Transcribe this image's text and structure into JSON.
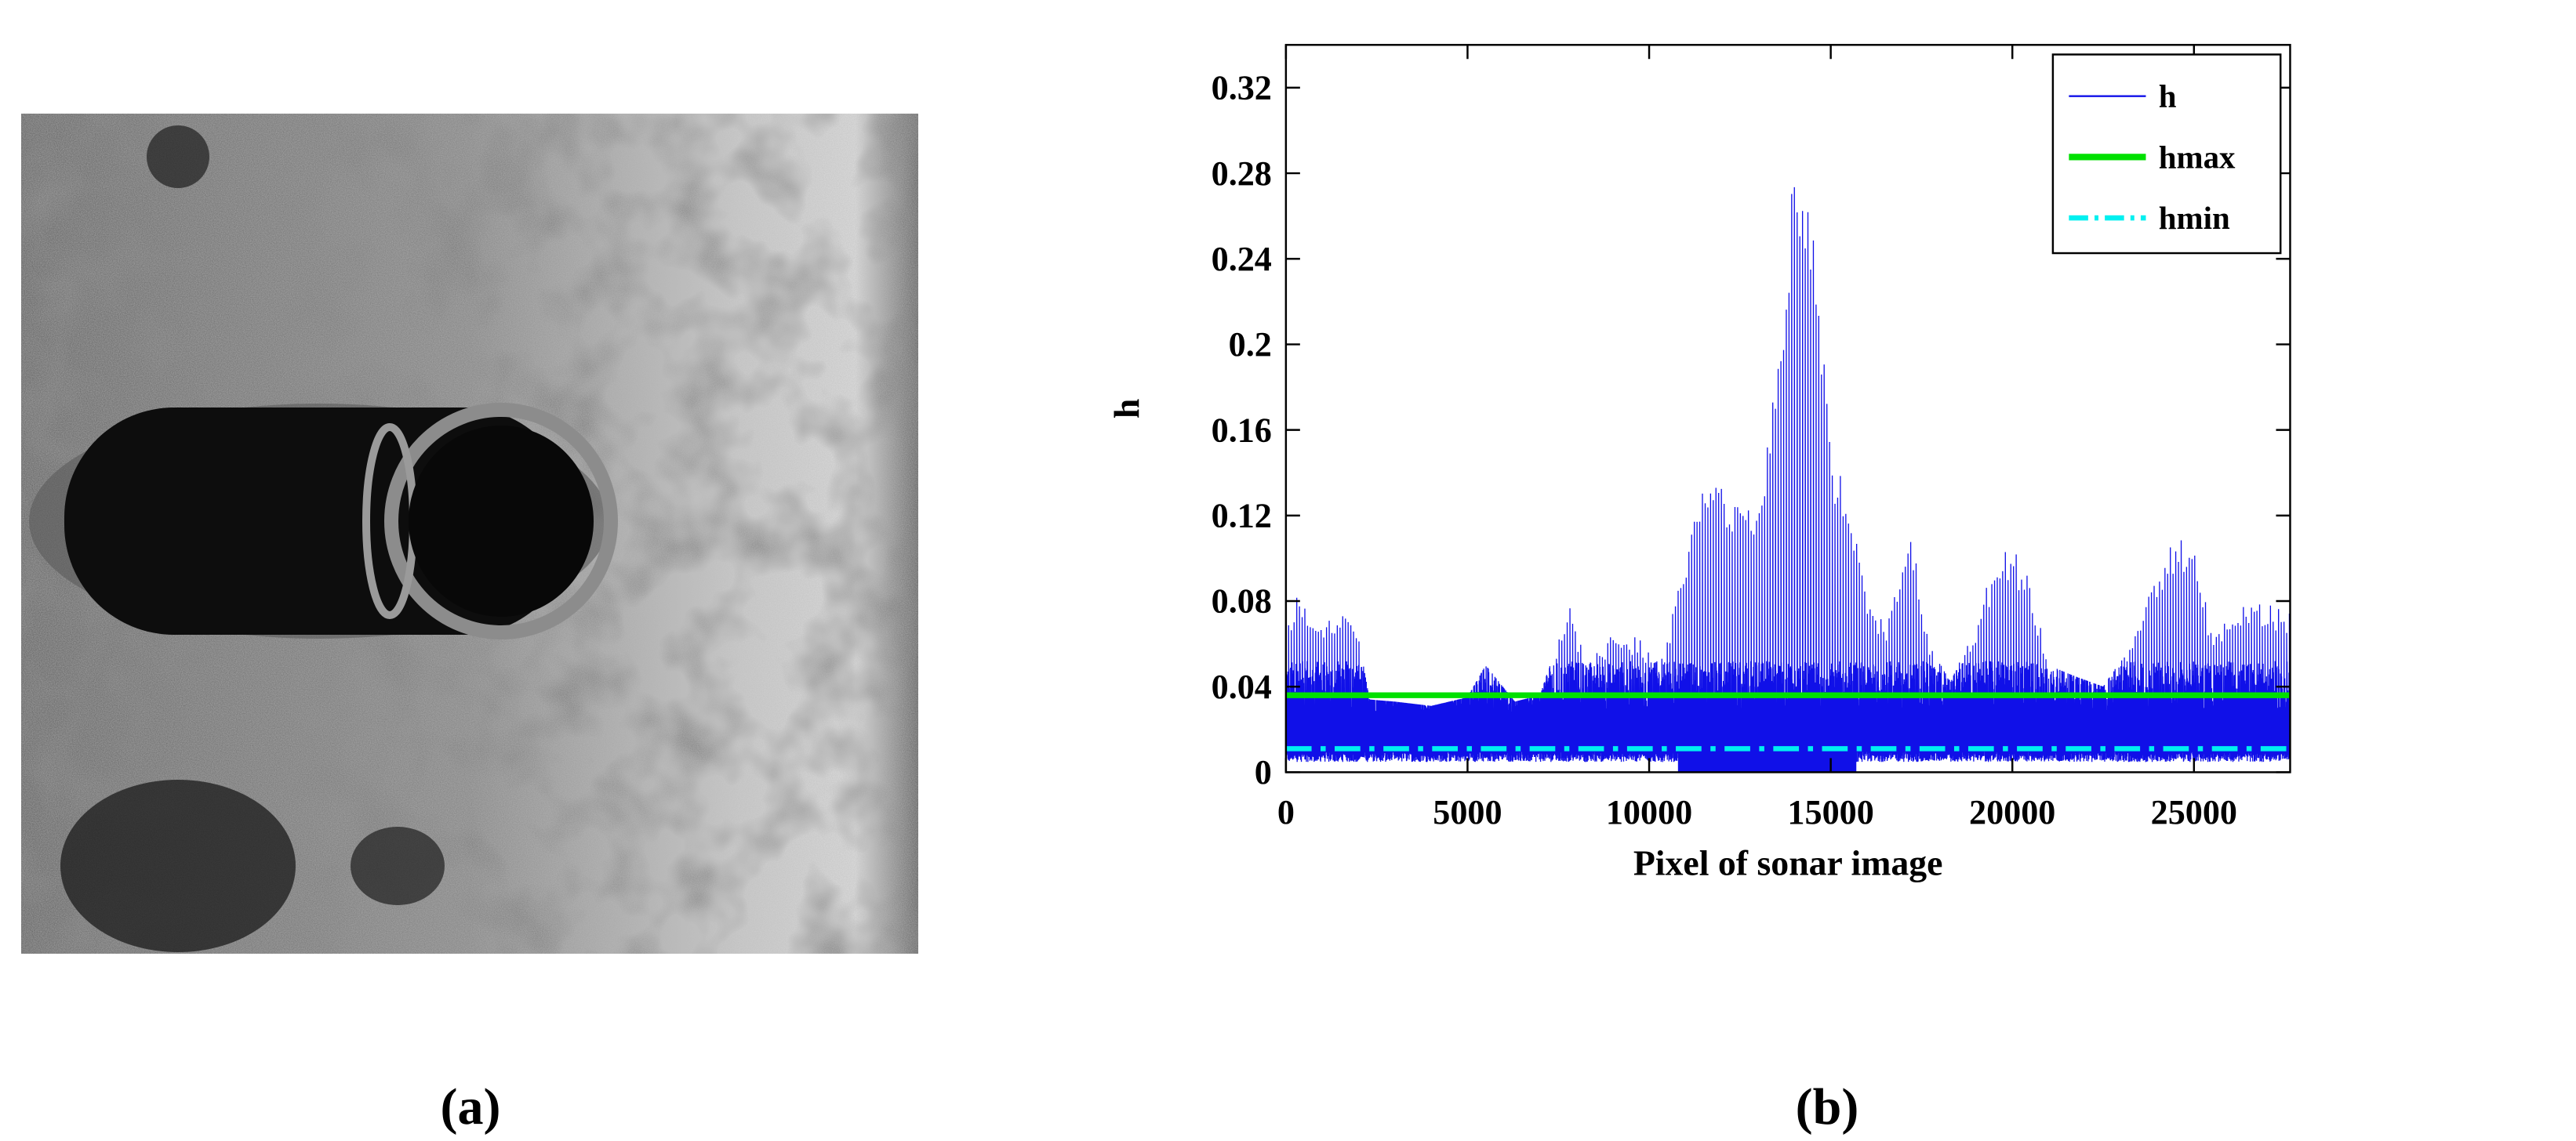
{
  "panel_labels": {
    "a": "(a)",
    "b": "(b)"
  },
  "colors": {
    "h": "#1010e8",
    "hmax": "#00e000",
    "hmin": "#00f0f0",
    "axis": "#000000"
  },
  "chart_data": {
    "type": "line",
    "title": "",
    "xlabel": "Pixel of sonar image",
    "ylabel": "h",
    "xlim": [
      0,
      27648
    ],
    "ylim": [
      0,
      0.34
    ],
    "xticks": [
      0,
      5000,
      10000,
      15000,
      20000,
      25000
    ],
    "xtick_labels": [
      "0",
      "5000",
      "10000",
      "15000",
      "20000",
      "25000"
    ],
    "yticks": [
      0,
      0.04,
      0.08,
      0.12,
      0.16,
      0.2,
      0.24,
      0.28,
      0.32
    ],
    "ytick_labels": [
      "0",
      "0.04",
      "0.08",
      "0.12",
      "0.16",
      "0.2",
      "0.24",
      "0.28",
      "0.32"
    ],
    "legend": {
      "position": "top-right",
      "entries": [
        "h",
        "hmax",
        "hmin"
      ]
    },
    "series": [
      {
        "name": "h",
        "style": "solid-thin",
        "envelope_x": [
          0,
          300,
          700,
          1300,
          1900,
          2300,
          3000,
          4000,
          5000,
          5500,
          6300,
          7000,
          7800,
          8300,
          9000,
          9700,
          10300,
          10800,
          11500,
          12000,
          12500,
          13000,
          13500,
          14000,
          14500,
          15000,
          15500,
          16000,
          16500,
          17200,
          17700,
          18300,
          19000,
          19600,
          20000,
          20500,
          21000,
          21700,
          22500,
          23300,
          24000,
          24500,
          25000,
          25500,
          26000,
          26500,
          27000,
          27500
        ],
        "envelope_y": [
          0.066,
          0.086,
          0.073,
          0.074,
          0.072,
          0.034,
          0.033,
          0.031,
          0.035,
          0.05,
          0.033,
          0.036,
          0.078,
          0.052,
          0.065,
          0.064,
          0.05,
          0.085,
          0.146,
          0.135,
          0.125,
          0.12,
          0.19,
          0.289,
          0.265,
          0.15,
          0.13,
          0.08,
          0.07,
          0.115,
          0.06,
          0.042,
          0.07,
          0.104,
          0.105,
          0.09,
          0.05,
          0.045,
          0.04,
          0.06,
          0.095,
          0.11,
          0.11,
          0.065,
          0.075,
          0.082,
          0.079,
          0.076
        ],
        "baseline_y": [
          0.008,
          0.04
        ],
        "dips_to_zero_x": [
          10800,
          15700
        ]
      },
      {
        "name": "hmax",
        "style": "solid-thick",
        "x": [
          0,
          27648
        ],
        "y": [
          0.036,
          0.036
        ]
      },
      {
        "name": "hmin",
        "style": "dash-dot",
        "x": [
          0,
          27648
        ],
        "y": [
          0.011,
          0.011
        ]
      }
    ]
  }
}
